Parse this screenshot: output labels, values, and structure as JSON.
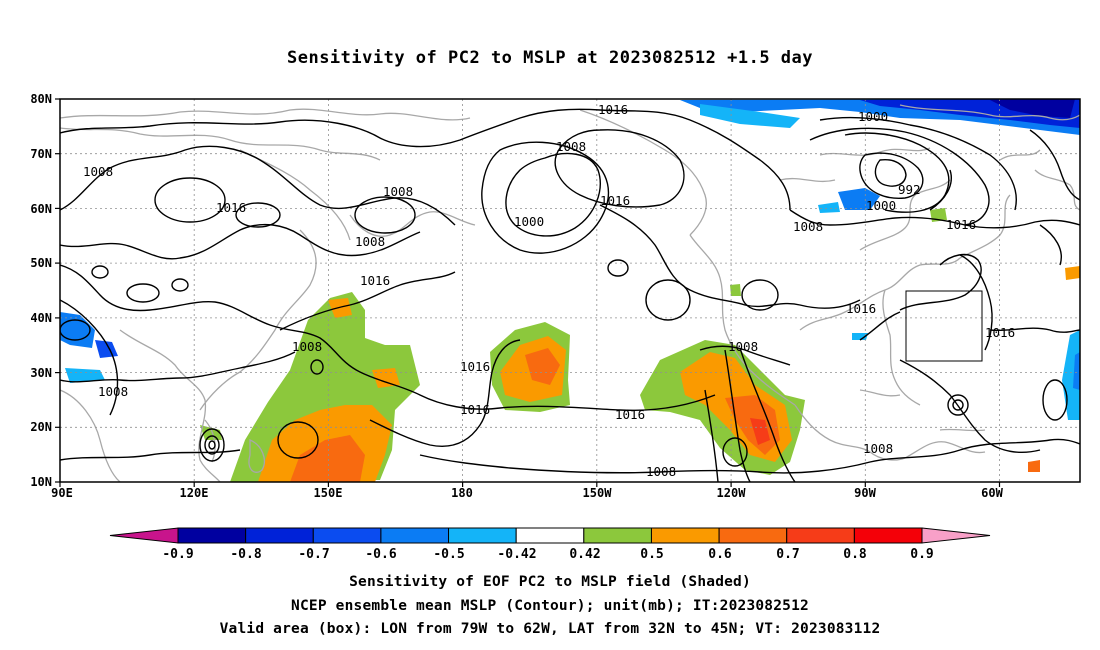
{
  "title": "Sensitivity of PC2 to MSLP at 2023082512 +1.5 day",
  "lat_labels": [
    "80N",
    "70N",
    "60N",
    "50N",
    "40N",
    "30N",
    "20N",
    "10N"
  ],
  "lon_labels": [
    "90E",
    "120E",
    "150E",
    "180",
    "150W",
    "120W",
    "90W",
    "60W"
  ],
  "contour_labels": [
    "1016",
    "1008",
    "1000",
    "992",
    "1000",
    "1016",
    "1008",
    "1016",
    "1008",
    "1000",
    "1016",
    "1008",
    "1016",
    "1016",
    "1016",
    "1008",
    "1016",
    "1008",
    "1016",
    "1008",
    "1008",
    "1008",
    "1016"
  ],
  "colorbar": {
    "labels": [
      "-0.9",
      "-0.8",
      "-0.7",
      "-0.6",
      "-0.5",
      "-0.42",
      "0.42",
      "0.5",
      "0.6",
      "0.7",
      "0.8",
      "0.9"
    ],
    "colors": [
      "#0000a0",
      "#0022d8",
      "#0b4cf0",
      "#0b7cf4",
      "#14b4f8",
      "#ffffff",
      "#8cc83c",
      "#fa9a00",
      "#f86a10",
      "#f63c18",
      "#f40008"
    ],
    "low_arrow_color": "#c8148c",
    "high_arrow_color": "#f8a0c8"
  },
  "captions": {
    "line1": "Sensitivity of EOF PC2 to MSLP field (Shaded)",
    "line2": "NCEP ensemble mean MSLP (Contour); unit(mb); IT:2023082512",
    "line3": "Valid area (box): LON from 79W to 62W, LAT from 32N to 45N; VT: 2023083112"
  }
}
